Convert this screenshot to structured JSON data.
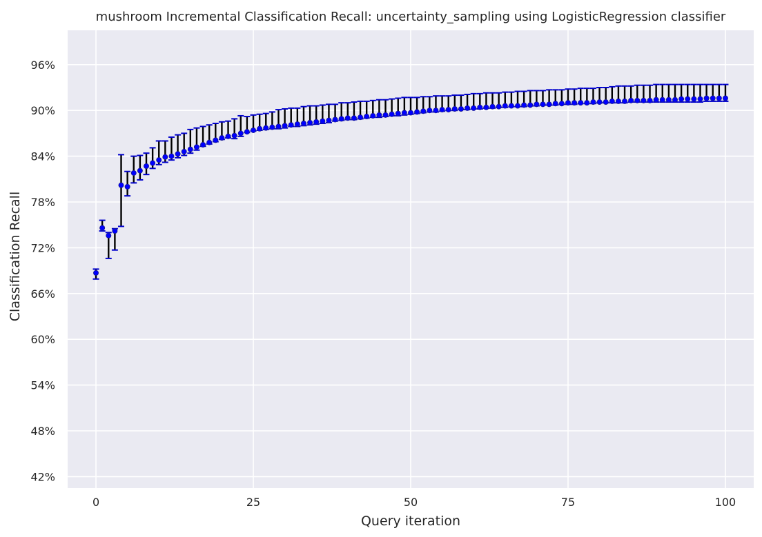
{
  "chart_data": {
    "type": "scatter",
    "title": "mushroom Incremental Classification Recall: uncertainty_sampling using LogisticRegression classifier",
    "xlabel": "Query iteration",
    "ylabel": "Classification Recall",
    "xlim": [
      -4.5,
      104.5
    ],
    "ylim": [
      40.5,
      100.5
    ],
    "xticks": [
      0,
      25,
      50,
      75,
      100
    ],
    "xtick_labels": [
      "0",
      "25",
      "50",
      "75",
      "100"
    ],
    "yticks": [
      42,
      48,
      54,
      60,
      66,
      72,
      78,
      84,
      90,
      96
    ],
    "ytick_labels": [
      "42%",
      "48%",
      "54%",
      "60%",
      "66%",
      "72%",
      "78%",
      "84%",
      "90%",
      "96%"
    ],
    "grid": true,
    "colors": {
      "background": "#eaeaf2",
      "grid": "#ffffff",
      "marker_fill": "#0000ff",
      "errorbar": "#000000",
      "caps": "#0000cc"
    },
    "series": [
      {
        "x": [
          0,
          1,
          2,
          3,
          4,
          5,
          6,
          7,
          8,
          9,
          10,
          11,
          12,
          13,
          14,
          15,
          16,
          17,
          18,
          19,
          20,
          21,
          22,
          23,
          24,
          25,
          26,
          27,
          28,
          29,
          30,
          31,
          32,
          33,
          34,
          35,
          36,
          37,
          38,
          39,
          40,
          41,
          42,
          43,
          44,
          45,
          46,
          47,
          48,
          49,
          50,
          51,
          52,
          53,
          54,
          55,
          56,
          57,
          58,
          59,
          60,
          61,
          62,
          63,
          64,
          65,
          66,
          67,
          68,
          69,
          70,
          71,
          72,
          73,
          74,
          75,
          76,
          77,
          78,
          79,
          80,
          81,
          82,
          83,
          84,
          85,
          86,
          87,
          88,
          89,
          90,
          91,
          92,
          93,
          94,
          95,
          96,
          97,
          98,
          99,
          100
        ],
        "y": [
          68.7,
          74.6,
          73.6,
          74.2,
          80.2,
          80.0,
          81.8,
          82.1,
          82.7,
          83.1,
          83.5,
          83.9,
          84.0,
          84.3,
          84.6,
          84.9,
          85.2,
          85.5,
          85.8,
          86.1,
          86.4,
          86.6,
          86.7,
          87.0,
          87.2,
          87.4,
          87.6,
          87.7,
          87.8,
          87.9,
          88.0,
          88.1,
          88.2,
          88.3,
          88.4,
          88.5,
          88.6,
          88.7,
          88.8,
          88.9,
          89.0,
          89.0,
          89.1,
          89.2,
          89.3,
          89.4,
          89.4,
          89.5,
          89.6,
          89.7,
          89.7,
          89.8,
          89.9,
          90.0,
          90.0,
          90.1,
          90.1,
          90.2,
          90.2,
          90.3,
          90.3,
          90.4,
          90.4,
          90.5,
          90.5,
          90.6,
          90.6,
          90.6,
          90.7,
          90.7,
          90.8,
          90.8,
          90.8,
          90.9,
          90.9,
          91.0,
          91.0,
          91.0,
          91.0,
          91.1,
          91.1,
          91.1,
          91.2,
          91.2,
          91.2,
          91.3,
          91.3,
          91.3,
          91.3,
          91.4,
          91.4,
          91.4,
          91.4,
          91.5,
          91.5,
          91.5,
          91.5,
          91.6,
          91.6,
          91.6,
          91.6
        ],
        "upper": [
          69.2,
          75.6,
          74.0,
          74.5,
          84.2,
          82.0,
          84.0,
          84.1,
          84.4,
          85.1,
          86.0,
          86.0,
          86.5,
          86.8,
          87.0,
          87.5,
          87.7,
          87.9,
          88.1,
          88.3,
          88.5,
          88.6,
          88.9,
          89.3,
          89.2,
          89.4,
          89.5,
          89.6,
          89.8,
          90.1,
          90.2,
          90.3,
          90.3,
          90.5,
          90.6,
          90.6,
          90.7,
          90.8,
          90.8,
          91.0,
          91.0,
          91.1,
          91.2,
          91.2,
          91.3,
          91.4,
          91.4,
          91.5,
          91.6,
          91.7,
          91.7,
          91.7,
          91.8,
          91.8,
          91.9,
          91.9,
          91.9,
          92.0,
          92.0,
          92.1,
          92.2,
          92.2,
          92.3,
          92.3,
          92.3,
          92.4,
          92.4,
          92.5,
          92.5,
          92.6,
          92.6,
          92.6,
          92.7,
          92.7,
          92.7,
          92.8,
          92.8,
          92.9,
          92.9,
          92.9,
          93.0,
          93.0,
          93.1,
          93.2,
          93.2,
          93.2,
          93.3,
          93.3,
          93.3,
          93.4,
          93.4,
          93.4,
          93.4,
          93.4,
          93.4,
          93.4,
          93.4,
          93.4,
          93.4,
          93.4,
          93.4
        ],
        "lower": [
          67.9,
          74.2,
          70.6,
          71.7,
          74.8,
          78.8,
          80.5,
          80.9,
          81.6,
          82.4,
          82.9,
          83.2,
          83.5,
          83.8,
          84.1,
          84.4,
          84.8,
          85.3,
          85.6,
          85.9,
          86.2,
          86.4,
          86.3,
          86.6,
          87.1,
          87.3,
          87.4,
          87.5,
          87.6,
          87.6,
          87.7,
          87.9,
          87.9,
          88.0,
          88.1,
          88.2,
          88.3,
          88.4,
          88.6,
          88.7,
          88.8,
          88.8,
          88.9,
          89.0,
          89.1,
          89.1,
          89.2,
          89.3,
          89.3,
          89.4,
          89.5,
          89.6,
          89.7,
          89.8,
          89.8,
          89.9,
          90.0,
          90.0,
          90.1,
          90.1,
          90.2,
          90.2,
          90.3,
          90.3,
          90.4,
          90.4,
          90.5,
          90.5,
          90.5,
          90.6,
          90.6,
          90.7,
          90.7,
          90.7,
          90.8,
          90.8,
          90.8,
          90.9,
          90.9,
          90.9,
          91.0,
          91.0,
          91.0,
          91.0,
          91.0,
          91.1,
          91.1,
          91.1,
          91.1,
          91.1,
          91.1,
          91.1,
          91.1,
          91.1,
          91.1,
          91.1,
          91.1,
          91.2,
          91.2,
          91.2,
          91.2
        ]
      }
    ]
  }
}
